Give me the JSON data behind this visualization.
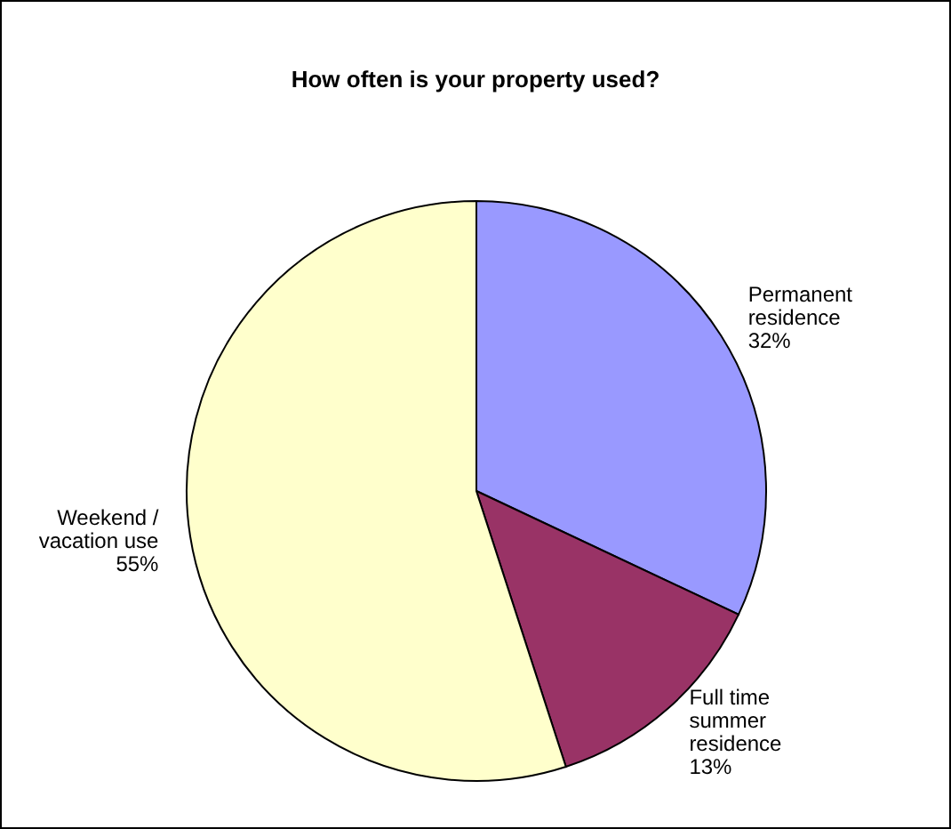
{
  "chart_data": {
    "type": "pie",
    "title": "How often is your property used?",
    "categories": [
      "Permanent residence",
      "Full time summer residence",
      "Weekend / vacation use"
    ],
    "values": [
      32,
      13,
      55
    ],
    "colors": [
      "#9999ff",
      "#993366",
      "#ffffcc"
    ],
    "value_labels": [
      "32%",
      "13%",
      "55%"
    ],
    "legend": false
  }
}
